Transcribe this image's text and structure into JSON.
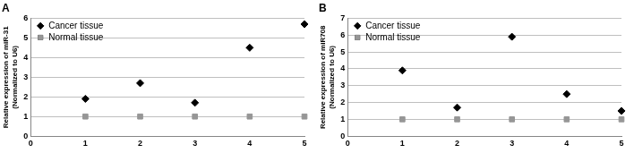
{
  "chart_data": [
    {
      "type": "scatter",
      "title": "A",
      "y_label": [
        "Relative expression of miR-31",
        "(Normalized to U6)"
      ],
      "x": [
        1,
        2,
        3,
        4,
        5
      ],
      "series": [
        {
          "name": "Cancer tissue",
          "color": "#000000",
          "marker": "diamond",
          "values": [
            1.9,
            2.7,
            1.7,
            4.5,
            5.7
          ]
        },
        {
          "name": "Normal tissue",
          "color": "#969696",
          "marker": "square",
          "values": [
            1,
            1,
            1,
            1,
            1
          ]
        }
      ],
      "xlim": [
        0,
        5
      ],
      "xticks": [
        0,
        1,
        2,
        3,
        4,
        5
      ],
      "ylim": [
        0,
        6
      ],
      "yticks": [
        0,
        1,
        2,
        3,
        4,
        5,
        6
      ],
      "grid": "y",
      "legend": "upper left"
    },
    {
      "type": "scatter",
      "title": "B",
      "y_label": [
        "Relative expression of miR708",
        "(Normalized to U6)"
      ],
      "x": [
        1,
        2,
        3,
        4,
        5
      ],
      "series": [
        {
          "name": "Cancer tissue",
          "color": "#000000",
          "marker": "diamond",
          "values": [
            3.9,
            1.7,
            5.9,
            2.5,
            1.5
          ]
        },
        {
          "name": "Normal tissue",
          "color": "#969696",
          "marker": "square",
          "values": [
            1,
            1,
            1,
            1,
            1
          ]
        }
      ],
      "xlim": [
        0,
        5
      ],
      "xticks": [
        0,
        1,
        2,
        3,
        4,
        5
      ],
      "ylim": [
        0,
        7
      ],
      "yticks": [
        0,
        1,
        2,
        3,
        4,
        5,
        6,
        7
      ],
      "grid": "y",
      "legend": "upper left"
    }
  ]
}
